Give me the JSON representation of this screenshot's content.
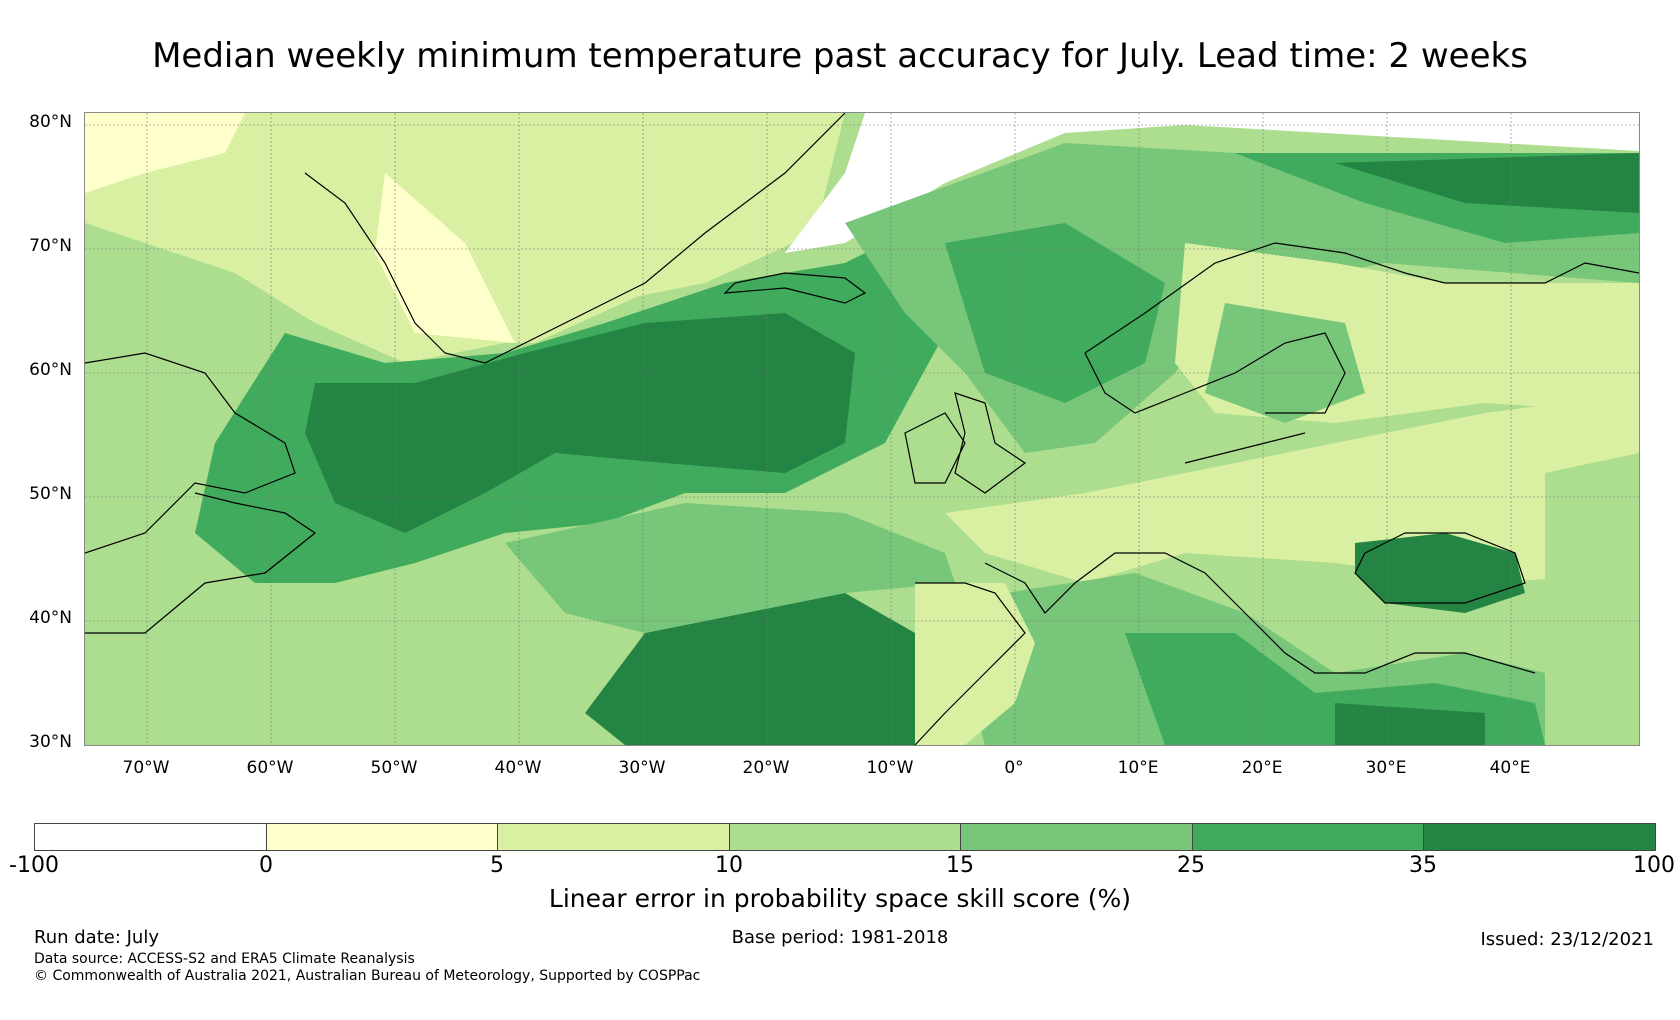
{
  "title": "Median weekly minimum temperature past accuracy for July. Lead time: 2 weeks",
  "lat_labels": [
    "80°N",
    "70°N",
    "60°N",
    "50°N",
    "40°N",
    "30°N"
  ],
  "lon_labels": [
    "70°W",
    "60°W",
    "50°W",
    "40°W",
    "30°W",
    "20°W",
    "10°W",
    "0°",
    "10°E",
    "20°E",
    "30°E",
    "40°E"
  ],
  "colorbar": {
    "colors": [
      "#ffffff",
      "#ffffcc",
      "#d9f0a3",
      "#addd8e",
      "#78c679",
      "#41ab5d",
      "#238443"
    ],
    "ticks": [
      "-100",
      "0",
      "5",
      "10",
      "15",
      "25",
      "35",
      "100"
    ],
    "label": "Linear error in probability space skill score (%)"
  },
  "footer": {
    "run_date": "Run date: July",
    "base_period": "Base period: 1981-2018",
    "issued": "Issued: 23/12/2021",
    "data_source": "Data source: ACCESS-S2 and ERA5 Climate Reanalysis",
    "copyright": "© Commonwealth of Australia 2021, Australian Bureau of Meteorology, Supported by COSPPac"
  }
}
